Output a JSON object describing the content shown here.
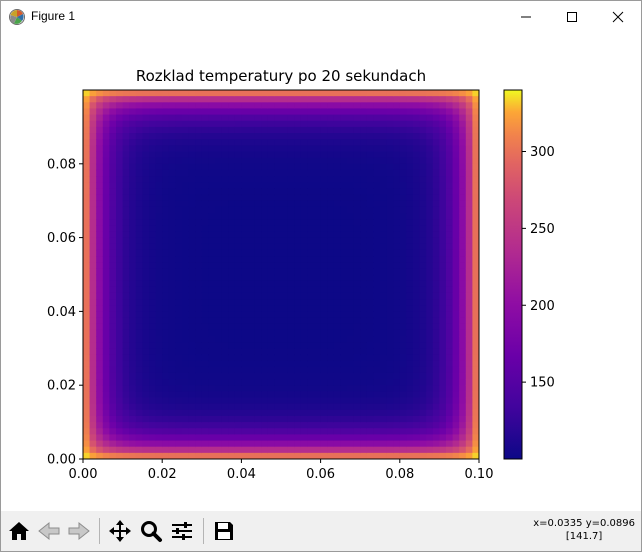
{
  "window": {
    "title": "Figure 1"
  },
  "chart_data": {
    "type": "heatmap",
    "title": "Rozklad temperatury po 20 sekundach",
    "xlim": [
      0.0,
      0.1
    ],
    "ylim": [
      0.0,
      0.1
    ],
    "x_ticks": [
      "0.00",
      "0.02",
      "0.04",
      "0.06",
      "0.08",
      "0.10"
    ],
    "y_ticks": [
      "0.00",
      "0.02",
      "0.04",
      "0.06",
      "0.08"
    ],
    "colormap": "plasma",
    "colorbar": {
      "range": [
        100,
        340
      ],
      "ticks": [
        "150",
        "200",
        "250",
        "300"
      ]
    },
    "description_values": {
      "center_min": 100,
      "corner_max": 340
    }
  },
  "toolbar": {
    "items": [
      {
        "name": "home-button",
        "icon": "home-icon"
      },
      {
        "name": "back-button",
        "icon": "arrow-left-icon"
      },
      {
        "name": "forward-button",
        "icon": "arrow-right-icon"
      },
      {
        "name": "pan-button",
        "icon": "move-icon"
      },
      {
        "name": "zoom-button",
        "icon": "magnifier-icon"
      },
      {
        "name": "configure-subplots-button",
        "icon": "sliders-icon"
      },
      {
        "name": "save-button",
        "icon": "floppy-icon"
      }
    ]
  },
  "status": {
    "coords": "x=0.0335 y=0.0896",
    "value": "[141.7]"
  }
}
